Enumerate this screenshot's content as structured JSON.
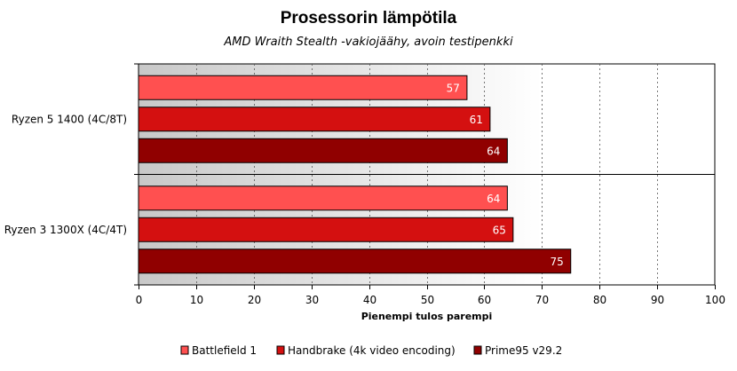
{
  "title": "Prosessorin lämpötila",
  "subtitle": "AMD Wraith Stealth -vakiojäähy, avoin testipenkki",
  "chart_data": {
    "type": "bar",
    "orientation": "horizontal",
    "title": "Prosessorin lämpötila",
    "subtitle": "AMD Wraith Stealth -vakiojäähy, avoin testipenkki",
    "xlabel": "Pienempi tulos parempi",
    "ylabel": "",
    "categories": [
      "Ryzen 5 1400 (4C/8T)",
      "Ryzen 3 1300X (4C/4T)"
    ],
    "series": [
      {
        "name": "Battlefield 1",
        "values": [
          57,
          64
        ],
        "color": "#ff5050"
      },
      {
        "name": "Handbrake (4k video encoding)",
        "values": [
          61,
          65
        ],
        "color": "#d41010"
      },
      {
        "name": "Prime95 v29.2",
        "values": [
          64,
          75
        ],
        "color": "#900000"
      }
    ],
    "xlim": [
      0,
      100
    ],
    "ticks": [
      "0",
      "10",
      "20",
      "30",
      "40",
      "50",
      "60",
      "70",
      "80",
      "90",
      "100"
    ],
    "grid": "vertical dashed",
    "legend": "bottom"
  }
}
